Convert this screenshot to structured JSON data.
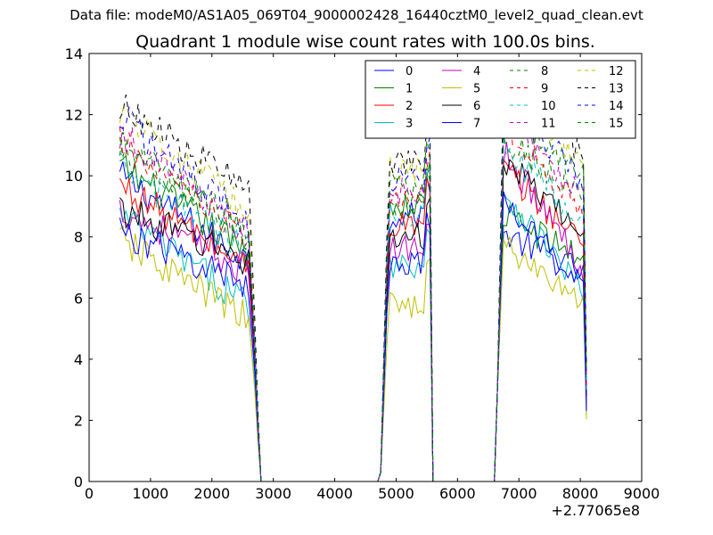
{
  "figure": {
    "suptitle": "Data file: modeM0/AS1A05_069T04_9000002428_16440cztM0_level2_quad_clean.evt"
  },
  "chart_data": {
    "type": "line",
    "title": "Quadrant 1 module wise count rates with 100.0s bins.",
    "xlabel": "",
    "ylabel": "",
    "xlim": [
      0,
      9000
    ],
    "ylim": [
      0,
      14
    ],
    "x_offset_label": "+2.77065e8",
    "xticks": [
      0,
      1000,
      2000,
      3000,
      4000,
      5000,
      6000,
      7000,
      8000,
      9000
    ],
    "yticks": [
      0,
      2,
      4,
      6,
      8,
      10,
      12,
      14
    ],
    "grid": false,
    "legend_position": "top-right",
    "legend_columns": 4,
    "segments": [
      {
        "x_start": 500,
        "x_end": 2600
      },
      {
        "x_start": 4850,
        "x_end": 5550
      },
      {
        "x_start": 6750,
        "x_end": 8050
      }
    ],
    "zero_x": [
      2800,
      4700,
      5600,
      6600
    ],
    "gap_edges": {
      "drop_end": 2750,
      "rise_start": 4750,
      "drop2_start": 5550,
      "rise2_start": 6650,
      "final_x": 8100
    },
    "series": [
      {
        "name": "0",
        "color": "#0000ff",
        "style": "solid",
        "levels": [
          10.0,
          7.2,
          8.7,
          8.1,
          6.8
        ]
      },
      {
        "name": "1",
        "color": "#008000",
        "style": "solid",
        "levels": [
          10.3,
          7.5,
          9.0,
          8.7,
          7.3
        ]
      },
      {
        "name": "2",
        "color": "#ff0000",
        "style": "solid",
        "levels": [
          9.7,
          7.0,
          8.4,
          10.2,
          7.8
        ]
      },
      {
        "name": "3",
        "color": "#00bfbf",
        "style": "solid",
        "levels": [
          8.7,
          5.8,
          7.1,
          9.5,
          6.2
        ]
      },
      {
        "name": "4",
        "color": "#bf00bf",
        "style": "solid",
        "levels": [
          8.9,
          6.9,
          7.6,
          10.8,
          7.0
        ]
      },
      {
        "name": "5",
        "color": "#bfbf00",
        "style": "solid",
        "levels": [
          7.9,
          5.3,
          5.8,
          7.7,
          5.8
        ]
      },
      {
        "name": "6",
        "color": "#000000",
        "style": "solid",
        "levels": [
          8.9,
          7.2,
          8.0,
          10.5,
          8.0
        ]
      },
      {
        "name": "7",
        "color": "#0000ff",
        "style": "solid",
        "levels": [
          8.2,
          6.4,
          7.2,
          9.0,
          6.6
        ]
      },
      {
        "name": "8",
        "color": "#008000",
        "style": "dashed",
        "levels": [
          10.8,
          8.0,
          9.0,
          11.2,
          9.3
        ]
      },
      {
        "name": "9",
        "color": "#ff0000",
        "style": "dashed",
        "levels": [
          11.1,
          7.8,
          9.3,
          11.5,
          9.0
        ]
      },
      {
        "name": "10",
        "color": "#00bfbf",
        "style": "dashed",
        "levels": [
          10.2,
          7.6,
          8.8,
          10.8,
          8.6
        ]
      },
      {
        "name": "11",
        "color": "#bf00bf",
        "style": "dashed",
        "levels": [
          11.4,
          8.1,
          9.5,
          12.0,
          9.4
        ]
      },
      {
        "name": "12",
        "color": "#bfbf00",
        "style": "dashed",
        "levels": [
          12.2,
          8.7,
          10.2,
          13.2,
          10.4
        ]
      },
      {
        "name": "13",
        "color": "#000000",
        "style": "dashed",
        "levels": [
          12.3,
          9.5,
          10.4,
          13.0,
          10.7
        ]
      },
      {
        "name": "14",
        "color": "#0000ff",
        "style": "dashed",
        "levels": [
          12.0,
          8.4,
          9.9,
          12.5,
          9.8
        ]
      },
      {
        "name": "15",
        "color": "#008000",
        "style": "dashed",
        "levels": [
          11.0,
          8.3,
          9.6,
          12.2,
          10.0
        ]
      }
    ]
  }
}
